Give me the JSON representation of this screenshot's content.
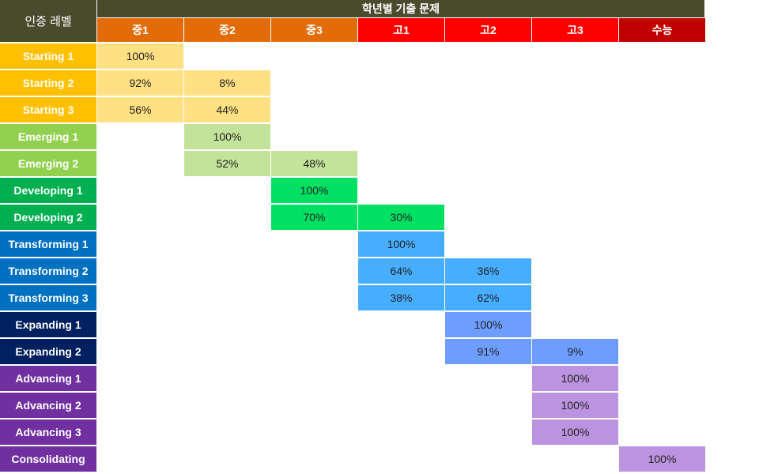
{
  "header": {
    "corner_label": "인증 레벨",
    "group_label": "학년별 기출 문제"
  },
  "grades": [
    {
      "label": "중1",
      "color": "#e36c09"
    },
    {
      "label": "중2",
      "color": "#e36c09"
    },
    {
      "label": "중3",
      "color": "#e36c09"
    },
    {
      "label": "고1",
      "color": "#ff0000"
    },
    {
      "label": "고2",
      "color": "#ff0000"
    },
    {
      "label": "고3",
      "color": "#ff0000"
    },
    {
      "label": "수능",
      "color": "#c00000"
    }
  ],
  "levels": [
    {
      "label": "Starting 1",
      "color": "#ffc000",
      "cell_color": "#ffe083",
      "cells": [
        {
          "col": 0,
          "value": "100%"
        }
      ]
    },
    {
      "label": "Starting 2",
      "color": "#ffc000",
      "cell_color": "#ffe083",
      "cells": [
        {
          "col": 0,
          "value": "92%"
        },
        {
          "col": 1,
          "value": "8%"
        }
      ]
    },
    {
      "label": "Starting 3",
      "color": "#ffc000",
      "cell_color": "#ffe083",
      "cells": [
        {
          "col": 0,
          "value": "56%"
        },
        {
          "col": 1,
          "value": "44%"
        }
      ]
    },
    {
      "label": "Emerging 1",
      "color": "#92d050",
      "cell_color": "#c3e39a",
      "cells": [
        {
          "col": 1,
          "value": "100%"
        }
      ]
    },
    {
      "label": "Emerging 2",
      "color": "#92d050",
      "cell_color": "#c3e39a",
      "cells": [
        {
          "col": 1,
          "value": "52%"
        },
        {
          "col": 2,
          "value": "48%"
        }
      ]
    },
    {
      "label": "Developing 1",
      "color": "#00b050",
      "cell_color": "#00e063",
      "cells": [
        {
          "col": 2,
          "value": "100%"
        }
      ]
    },
    {
      "label": "Developing 2",
      "color": "#00b050",
      "cell_color": "#00e063",
      "cells": [
        {
          "col": 2,
          "value": "70%"
        },
        {
          "col": 3,
          "value": "30%"
        }
      ]
    },
    {
      "label": "Transforming 1",
      "color": "#0070c0",
      "cell_color": "#47aeff",
      "cells": [
        {
          "col": 3,
          "value": "100%"
        }
      ]
    },
    {
      "label": "Transforming 2",
      "color": "#0070c0",
      "cell_color": "#47aeff",
      "cells": [
        {
          "col": 3,
          "value": "64%"
        },
        {
          "col": 4,
          "value": "36%"
        }
      ]
    },
    {
      "label": "Transforming 3",
      "color": "#0070c0",
      "cell_color": "#47aeff",
      "cells": [
        {
          "col": 3,
          "value": "38%"
        },
        {
          "col": 4,
          "value": "62%"
        }
      ]
    },
    {
      "label": "Expanding 1",
      "color": "#002060",
      "cell_color": "#6d9eff",
      "cells": [
        {
          "col": 4,
          "value": "100%"
        }
      ]
    },
    {
      "label": "Expanding 2",
      "color": "#002060",
      "cell_color": "#6d9eff",
      "cells": [
        {
          "col": 4,
          "value": "91%"
        },
        {
          "col": 5,
          "value": "9%"
        }
      ]
    },
    {
      "label": "Advancing 1",
      "color": "#7030a0",
      "cell_color": "#bb93e0",
      "cells": [
        {
          "col": 5,
          "value": "100%"
        }
      ]
    },
    {
      "label": "Advancing 2",
      "color": "#7030a0",
      "cell_color": "#bb93e0",
      "cells": [
        {
          "col": 5,
          "value": "100%"
        }
      ]
    },
    {
      "label": "Advancing 3",
      "color": "#7030a0",
      "cell_color": "#bb93e0",
      "cells": [
        {
          "col": 5,
          "value": "100%"
        }
      ]
    },
    {
      "label": "Consolidating",
      "color": "#7030a0",
      "cell_color": "#bb93e0",
      "cells": [
        {
          "col": 6,
          "value": "100%"
        }
      ]
    }
  ]
}
